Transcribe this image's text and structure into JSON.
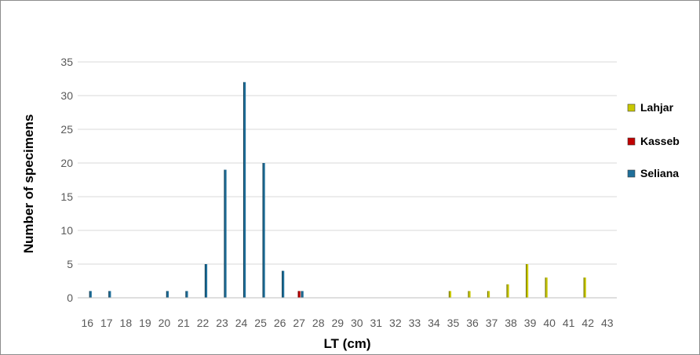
{
  "chart_data": {
    "type": "bar",
    "title": "",
    "xlabel": "LT (cm)",
    "ylabel": "Number of specimens",
    "ylim": [
      0,
      35
    ],
    "yticks": [
      0,
      5,
      10,
      15,
      20,
      25,
      30,
      35
    ],
    "grid": true,
    "legend_position": "right",
    "categories": [
      "16",
      "17",
      "18",
      "19",
      "20",
      "21",
      "22",
      "23",
      "24",
      "25",
      "26",
      "27",
      "28",
      "29",
      "30",
      "31",
      "32",
      "33",
      "34",
      "35",
      "36",
      "37",
      "38",
      "39",
      "40",
      "41",
      "42",
      "43"
    ],
    "series": [
      {
        "name": "Lahjar",
        "color": "#c8c800",
        "values": [
          0,
          0,
          0,
          0,
          0,
          0,
          0,
          0,
          0,
          0,
          0,
          0,
          0,
          0,
          0,
          0,
          0,
          0,
          0,
          1,
          1,
          1,
          2,
          5,
          3,
          0,
          3,
          0
        ]
      },
      {
        "name": "Kasseb",
        "color": "#c00000",
        "values": [
          0,
          0,
          0,
          0,
          0,
          0,
          0,
          0,
          0,
          0,
          0,
          1,
          0,
          0,
          0,
          0,
          0,
          0,
          0,
          0,
          0,
          0,
          0,
          0,
          0,
          0,
          0,
          0
        ]
      },
      {
        "name": "Seliana",
        "color": "#1f6f9a",
        "values": [
          1,
          1,
          0,
          0,
          1,
          1,
          5,
          19,
          32,
          20,
          4,
          1,
          0,
          0,
          0,
          0,
          0,
          0,
          0,
          0,
          0,
          0,
          0,
          0,
          0,
          0,
          0,
          0
        ]
      }
    ]
  }
}
